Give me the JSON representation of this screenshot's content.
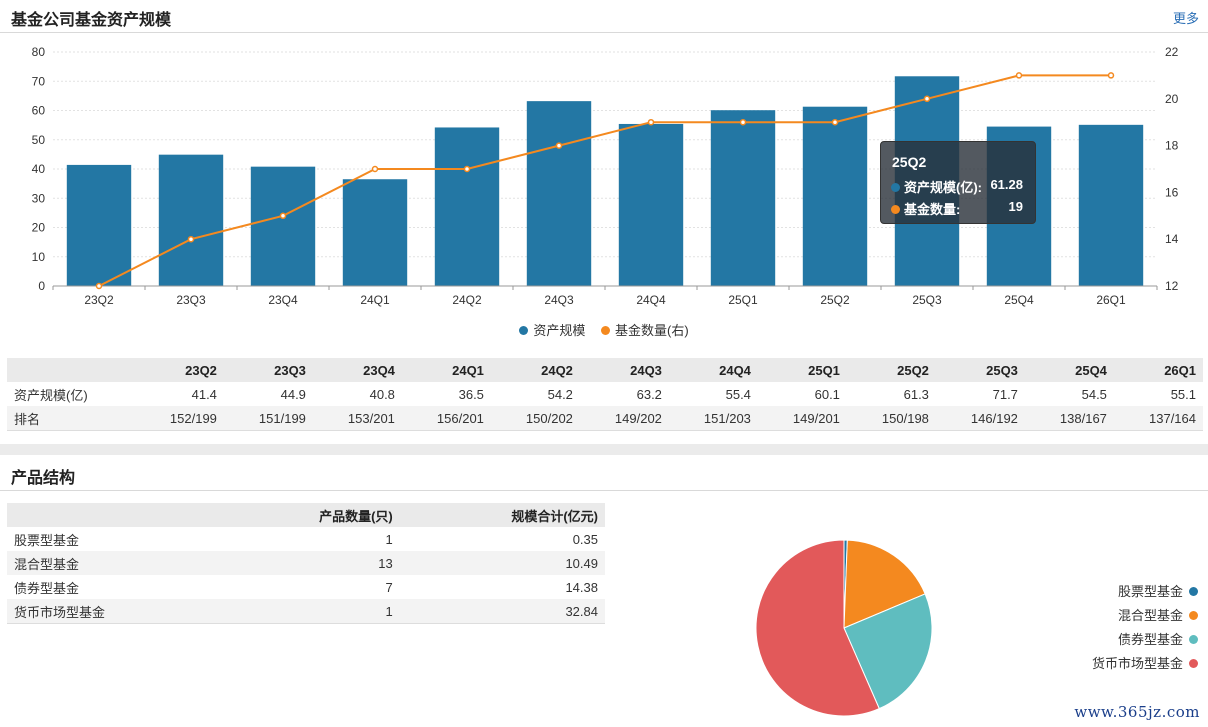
{
  "header1": {
    "title": "基金公司基金资产规模",
    "more": "更多"
  },
  "colors": {
    "bar": "#2377a4",
    "line": "#f4891f",
    "grid": "#e2e2e2",
    "axis": "#666666"
  },
  "chart_data": [
    {
      "type": "bar",
      "categories": [
        "23Q2",
        "23Q3",
        "23Q4",
        "24Q1",
        "24Q2",
        "24Q3",
        "24Q4",
        "25Q1",
        "25Q2",
        "25Q3",
        "25Q4",
        "26Q1"
      ],
      "series": [
        {
          "name": "资产规模",
          "type": "bar",
          "axis": "left",
          "values": [
            41.4,
            44.9,
            40.8,
            36.5,
            54.2,
            63.2,
            55.4,
            60.1,
            61.3,
            71.7,
            54.5,
            55.1
          ]
        },
        {
          "name": "基金数量(右)",
          "type": "line",
          "axis": "right",
          "values": [
            12,
            14,
            15,
            17,
            17,
            18,
            19,
            19,
            19,
            20,
            21,
            21
          ]
        }
      ],
      "ylim": [
        0,
        80
      ],
      "yticks": [
        0,
        10,
        20,
        30,
        40,
        50,
        60,
        70,
        80
      ],
      "y2lim": [
        12,
        22
      ],
      "y2ticks": [
        12,
        14,
        16,
        18,
        20,
        22
      ],
      "legend": "bottom-center",
      "grid": true
    },
    {
      "type": "pie",
      "categories": [
        "股票型基金",
        "混合型基金",
        "债券型基金",
        "货币市场型基金"
      ],
      "values": [
        0.35,
        10.49,
        14.38,
        32.84
      ],
      "legend": "right"
    }
  ],
  "tooltip": {
    "title": "25Q2",
    "row1_label": "资产规模(亿):",
    "row1_value": "61.28",
    "row2_label": "基金数量:",
    "row2_value": "19"
  },
  "table1": {
    "headers": [
      "",
      "23Q2",
      "23Q3",
      "23Q4",
      "24Q1",
      "24Q2",
      "24Q3",
      "24Q4",
      "25Q1",
      "25Q2",
      "25Q3",
      "25Q4",
      "26Q1"
    ],
    "rows": [
      [
        "资产规模(亿)",
        "41.4",
        "44.9",
        "40.8",
        "36.5",
        "54.2",
        "63.2",
        "55.4",
        "60.1",
        "61.3",
        "71.7",
        "54.5",
        "55.1"
      ],
      [
        "排名",
        "152/199",
        "151/199",
        "153/201",
        "156/201",
        "150/202",
        "149/202",
        "151/203",
        "149/201",
        "150/198",
        "146/192",
        "138/167",
        "137/164"
      ]
    ]
  },
  "header2": {
    "title": "产品结构"
  },
  "table2": {
    "headers": [
      "",
      "产品数量(只)",
      "规模合计(亿元)"
    ],
    "rows": [
      [
        "股票型基金",
        "1",
        "0.35"
      ],
      [
        "混合型基金",
        "13",
        "10.49"
      ],
      [
        "债券型基金",
        "7",
        "14.38"
      ],
      [
        "货币市场型基金",
        "1",
        "32.84"
      ]
    ]
  },
  "pie_colors": [
    "#2377a4",
    "#f4891f",
    "#5fbdbf",
    "#e2595a"
  ],
  "watermark": "www.365jz.com"
}
